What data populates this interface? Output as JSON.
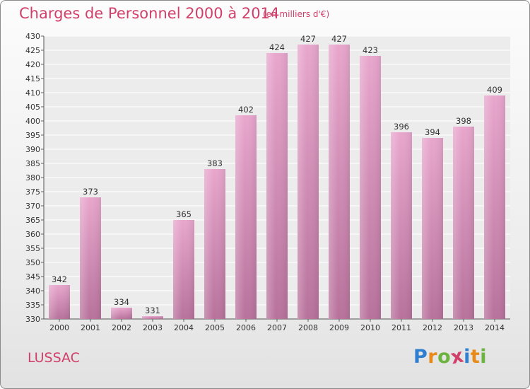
{
  "chart_data": {
    "type": "bar",
    "title": "Charges de Personnel 2000 à 2014",
    "subtitle": "(en milliers d'€)",
    "categories": [
      "2000",
      "2001",
      "2002",
      "2003",
      "2004",
      "2005",
      "2006",
      "2007",
      "2008",
      "2009",
      "2010",
      "2011",
      "2012",
      "2013",
      "2014"
    ],
    "values": [
      342,
      373,
      334,
      331,
      365,
      383,
      402,
      424,
      427,
      427,
      423,
      396,
      394,
      398,
      409
    ],
    "ylim": [
      330,
      430
    ],
    "ytick_step": 5,
    "grid": true,
    "bar_color": "#d98cb8"
  },
  "footer": {
    "commune": "LUSSAC",
    "brand_letters": [
      "P",
      "r",
      "o",
      "x",
      "i",
      "t",
      "i"
    ],
    "brand_colors": [
      "#2f7fd1",
      "#e88a1a",
      "#6cb33f",
      "#d0406a",
      "#2f7fd1",
      "#e88a1a",
      "#6cb33f"
    ]
  }
}
